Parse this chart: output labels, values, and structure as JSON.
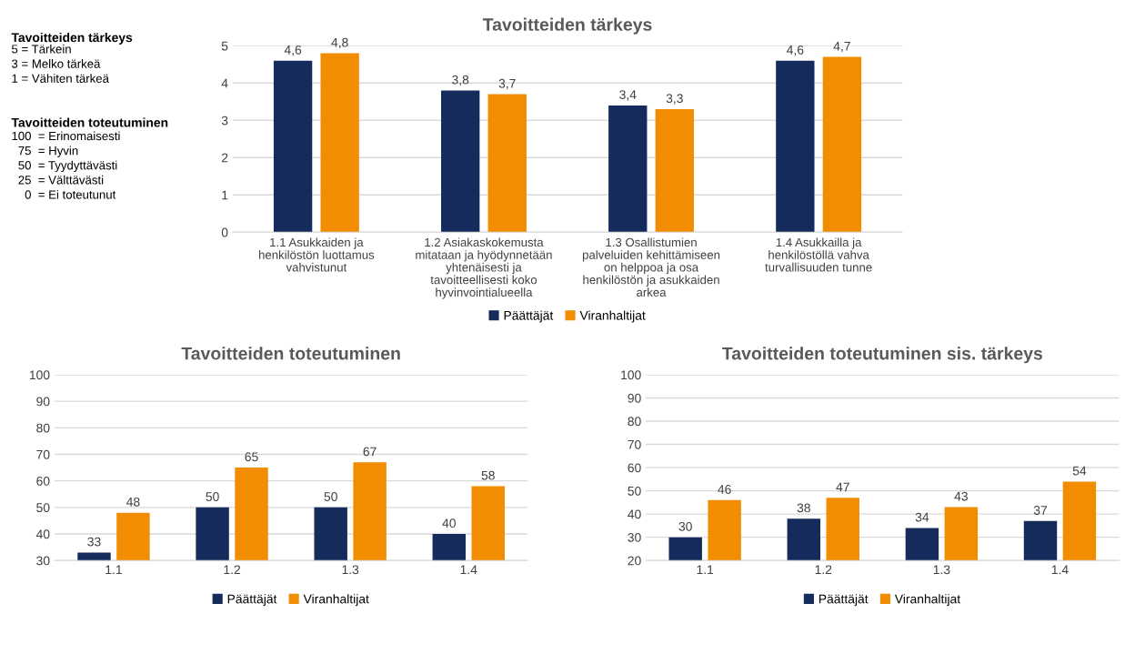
{
  "chart_data": [
    {
      "type": "other",
      "title": "Tavoitteiden tärkeys",
      "annotations": [
        "5 = Tärkein",
        "3 = Melko tärkeä",
        "1 = Vähiten tärkeä"
      ]
    },
    {
      "type": "other",
      "title": "Tavoitteiden toteutuminen",
      "annotations": [
        "100  = Erinomaisesti",
        "  75  = Hyvin",
        "  50  = Tyydyttävästi",
        "  25  = Välttävästi",
        "    0  = Ei toteutunut"
      ]
    },
    {
      "type": "bar",
      "title": "Tavoitteiden tärkeys",
      "categories": [
        "1.1 Asukkaiden ja henkilöstön luottamus vahvistunut",
        "1.2 Asiakaskokemusta mitataan ja hyödynnetään yhtenäisesti ja tavoitteellisesti koko hyvinvointialueella",
        "1.3 Osallistumien palveluiden kehittämiseen on helppoa ja osa henkilöstön ja asukkaiden arkea",
        "1.4 Asukkailla ja henkilöstöllä vahva turvallisuuden tunne"
      ],
      "series": [
        {
          "name": "Päättäjät",
          "color": "#152b5c",
          "values": [
            4.6,
            3.8,
            3.4,
            4.6
          ],
          "value_labels": [
            "4,6",
            "3,8",
            "3,4",
            "4,6"
          ]
        },
        {
          "name": "Viranhaltijat",
          "color": "#f28c00",
          "values": [
            4.8,
            3.7,
            3.3,
            4.7
          ],
          "value_labels": [
            "4,8",
            "3,7",
            "3,3",
            "4,7"
          ]
        }
      ],
      "ylim": [
        0,
        5
      ],
      "yticks": [
        0,
        1,
        2,
        3,
        4,
        5
      ],
      "grid": "y",
      "legend": "bottom"
    },
    {
      "type": "bar",
      "title": "Tavoitteiden toteutuminen",
      "categories": [
        "1.1",
        "1.2",
        "1.3",
        "1.4"
      ],
      "series": [
        {
          "name": "Päättäjät",
          "color": "#152b5c",
          "values": [
            33,
            50,
            50,
            40
          ]
        },
        {
          "name": "Viranhaltijat",
          "color": "#f28c00",
          "values": [
            48,
            65,
            67,
            58
          ]
        }
      ],
      "ylim": [
        30,
        100
      ],
      "yticks": [
        30,
        40,
        50,
        60,
        70,
        80,
        90,
        100
      ],
      "grid": "y",
      "legend": "bottom",
      "data_labels": true
    },
    {
      "type": "bar",
      "title": "Tavoitteiden toteutuminen sis. tärkeys",
      "categories": [
        "1.1",
        "1.2",
        "1.3",
        "1.4"
      ],
      "series": [
        {
          "name": "Päättäjät",
          "color": "#152b5c",
          "values": [
            30,
            38,
            34,
            37
          ]
        },
        {
          "name": "Viranhaltijat",
          "color": "#f28c00",
          "values": [
            46,
            47,
            43,
            54
          ]
        }
      ],
      "ylim": [
        20,
        100
      ],
      "yticks": [
        20,
        30,
        40,
        50,
        60,
        70,
        80,
        90,
        100
      ],
      "grid": "y",
      "legend": "bottom",
      "data_labels": true
    }
  ]
}
